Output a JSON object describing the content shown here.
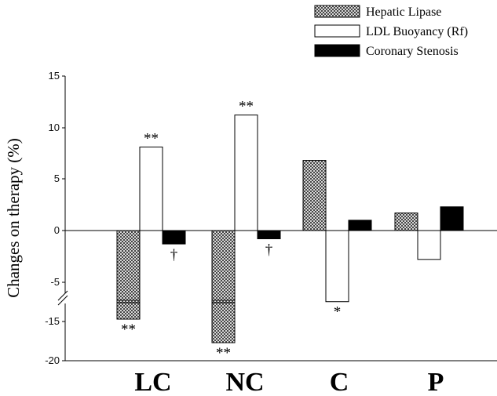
{
  "chart_data": {
    "type": "bar",
    "ylabel": "Changes on therapy (%)",
    "categories": [
      "LC",
      "NC",
      "C",
      "P"
    ],
    "series": [
      {
        "name": "Hepatic Lipase",
        "values": [
          -14.0,
          -17.0,
          6.8,
          1.7
        ],
        "fill": "hatch",
        "annotations": [
          "**",
          "**",
          "",
          ""
        ]
      },
      {
        "name": "LDL Buoyancy (Rf)",
        "values": [
          8.1,
          11.2,
          -6.9,
          -2.8
        ],
        "fill": "white",
        "annotations": [
          "**",
          "**",
          "*",
          ""
        ]
      },
      {
        "name": "Coronary Stenosis",
        "values": [
          -1.3,
          -0.8,
          1.0,
          2.3
        ],
        "fill": "black",
        "annotations": [
          "†",
          "†",
          "",
          ""
        ]
      }
    ],
    "y_ticks_upper": [
      "15",
      "10",
      "5",
      "0",
      "-5"
    ],
    "y_ticks_lower": [
      "-15",
      "-20"
    ],
    "axis_break": {
      "between": [
        -7,
        -12
      ]
    },
    "ylim": [
      -20,
      15
    ],
    "legend_position": "top-right",
    "grid": false
  }
}
